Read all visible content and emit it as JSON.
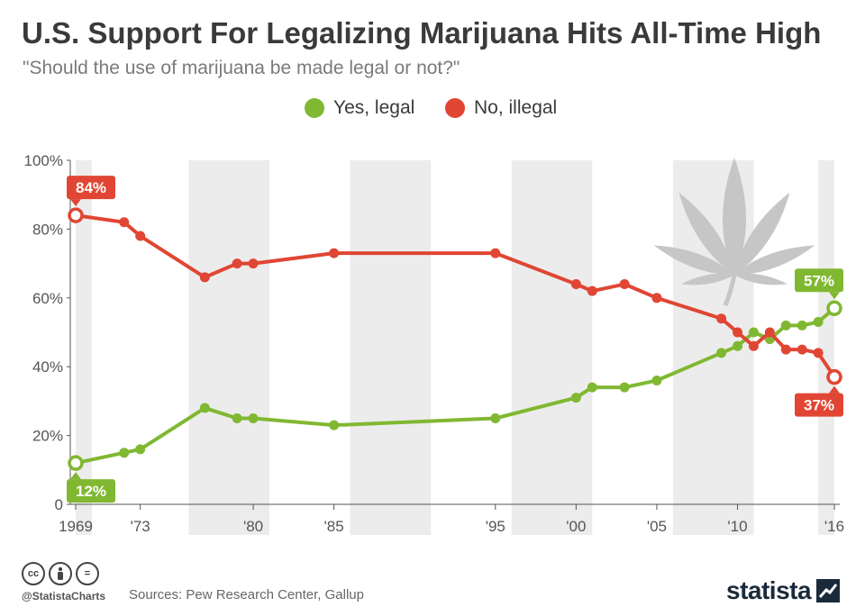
{
  "header": {
    "title": "U.S. Support For Legalizing Marijuana Hits All-Time High",
    "subtitle": "\"Should the use of marijuana be made legal or not?\""
  },
  "colors": {
    "yes": "#80b832",
    "no": "#e04633",
    "shade": "#ececec",
    "axis": "#555555"
  },
  "chart_data": {
    "type": "line",
    "title": "U.S. Support For Legalizing Marijuana Hits All-Time High",
    "subtitle": "\"Should the use of marijuana be made legal or not?\"",
    "xlabel": "",
    "ylabel": "",
    "xlim": [
      1969,
      2016
    ],
    "ylim": [
      0,
      100
    ],
    "y_ticks": [
      {
        "value": 0,
        "label": "0"
      },
      {
        "value": 20,
        "label": "20%"
      },
      {
        "value": 40,
        "label": "40%"
      },
      {
        "value": 60,
        "label": "60%"
      },
      {
        "value": 80,
        "label": "80%"
      },
      {
        "value": 100,
        "label": "100%"
      }
    ],
    "x_ticks": [
      {
        "value": 1969,
        "label": "1969"
      },
      {
        "value": 1973,
        "label": "'73"
      },
      {
        "value": 1980,
        "label": "'80"
      },
      {
        "value": 1985,
        "label": "'85"
      },
      {
        "value": 1995,
        "label": "'95"
      },
      {
        "value": 2000,
        "label": "'00"
      },
      {
        "value": 2005,
        "label": "'05"
      },
      {
        "value": 2010,
        "label": "'10"
      },
      {
        "value": 2016,
        "label": "'16"
      }
    ],
    "shaded_bands": [
      [
        1969,
        1970
      ],
      [
        1976,
        1981
      ],
      [
        1986,
        1991
      ],
      [
        1996,
        2001
      ],
      [
        2006,
        2011
      ],
      [
        2015,
        2016
      ]
    ],
    "legend_position": "top-center",
    "series": [
      {
        "name": "Yes, legal",
        "color_key": "yes",
        "points": [
          {
            "x": 1969,
            "y": 12
          },
          {
            "x": 1972,
            "y": 15
          },
          {
            "x": 1973,
            "y": 16
          },
          {
            "x": 1977,
            "y": 28
          },
          {
            "x": 1979,
            "y": 25
          },
          {
            "x": 1980,
            "y": 25
          },
          {
            "x": 1985,
            "y": 23
          },
          {
            "x": 1995,
            "y": 25
          },
          {
            "x": 2000,
            "y": 31
          },
          {
            "x": 2001,
            "y": 34
          },
          {
            "x": 2003,
            "y": 34
          },
          {
            "x": 2005,
            "y": 36
          },
          {
            "x": 2009,
            "y": 44
          },
          {
            "x": 2010,
            "y": 46
          },
          {
            "x": 2011,
            "y": 50
          },
          {
            "x": 2012,
            "y": 48
          },
          {
            "x": 2013,
            "y": 52
          },
          {
            "x": 2014,
            "y": 52
          },
          {
            "x": 2015,
            "y": 53
          },
          {
            "x": 2016,
            "y": 57
          }
        ],
        "callouts": [
          {
            "x": 1969,
            "y": 12,
            "label": "12%",
            "placement": "below"
          },
          {
            "x": 2016,
            "y": 57,
            "label": "57%",
            "placement": "above"
          }
        ]
      },
      {
        "name": "No, illegal",
        "color_key": "no",
        "points": [
          {
            "x": 1969,
            "y": 84
          },
          {
            "x": 1972,
            "y": 82
          },
          {
            "x": 1973,
            "y": 78
          },
          {
            "x": 1977,
            "y": 66
          },
          {
            "x": 1979,
            "y": 70
          },
          {
            "x": 1980,
            "y": 70
          },
          {
            "x": 1985,
            "y": 73
          },
          {
            "x": 1995,
            "y": 73
          },
          {
            "x": 2000,
            "y": 64
          },
          {
            "x": 2001,
            "y": 62
          },
          {
            "x": 2003,
            "y": 64
          },
          {
            "x": 2005,
            "y": 60
          },
          {
            "x": 2009,
            "y": 54
          },
          {
            "x": 2010,
            "y": 50
          },
          {
            "x": 2011,
            "y": 46
          },
          {
            "x": 2012,
            "y": 50
          },
          {
            "x": 2013,
            "y": 45
          },
          {
            "x": 2014,
            "y": 45
          },
          {
            "x": 2015,
            "y": 44
          },
          {
            "x": 2016,
            "y": 37
          }
        ],
        "callouts": [
          {
            "x": 1969,
            "y": 84,
            "label": "84%",
            "placement": "above"
          },
          {
            "x": 2016,
            "y": 37,
            "label": "37%",
            "placement": "below"
          }
        ]
      }
    ]
  },
  "legend": {
    "yes_label": "Yes, legal",
    "no_label": "No, illegal"
  },
  "footer": {
    "handle": "@StatistaCharts",
    "sources": "Sources: Pew Research Center, Gallup",
    "brand": "statista",
    "cc_icons": [
      "cc",
      "by",
      "="
    ]
  }
}
